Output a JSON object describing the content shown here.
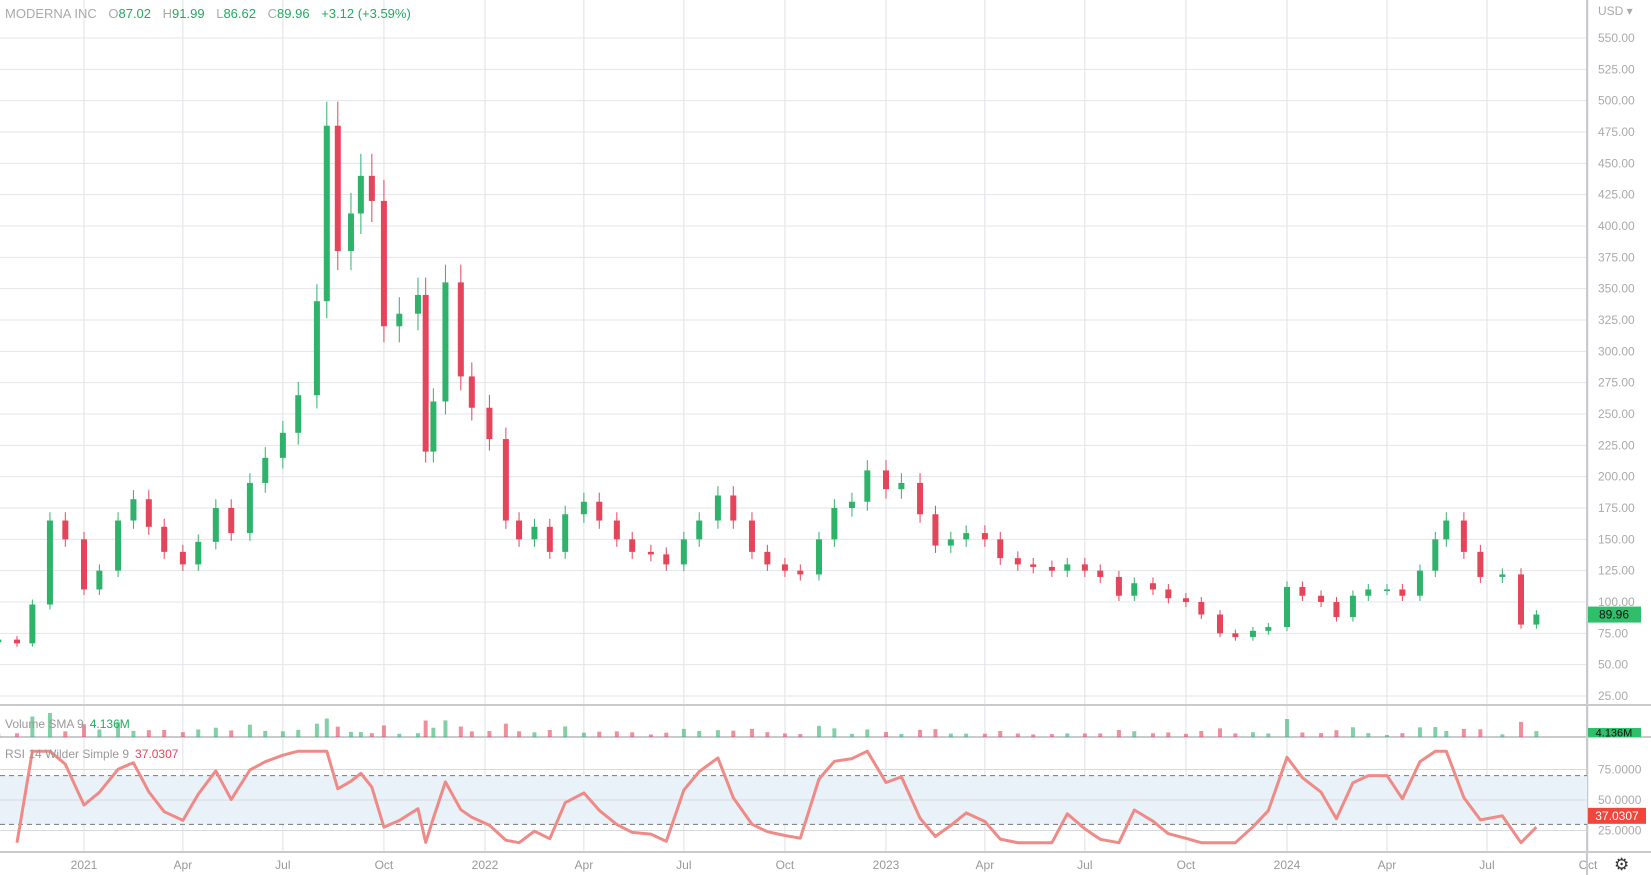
{
  "header": {
    "symbol": "MODERNA INC",
    "open_label": "O",
    "open": "87.02",
    "high_label": "H",
    "high": "91.99",
    "low_label": "L",
    "low": "86.62",
    "close_label": "C",
    "close": "89.96",
    "change": "+3.12 (+3.59%)"
  },
  "volume_indicator": {
    "label": "Volume SMA 9",
    "value": "4.136M"
  },
  "rsi_indicator": {
    "label": "RSI 14 Wilder Simple 9",
    "value": "37.0307"
  },
  "settings_icon": "gear-icon",
  "colors": {
    "up": "#2fb36b",
    "down": "#e5455a",
    "rsi": "#ef8a87",
    "rsi_band": "#e9f1f9",
    "last_price_bg": "#2fbf6b",
    "rsi_label_bg": "#f0463c"
  },
  "chart_data": {
    "type": "candlestick",
    "currency": "USD",
    "y_ticks": [
      25,
      50,
      75,
      100,
      125,
      150,
      175,
      200,
      225,
      250,
      275,
      300,
      325,
      350,
      375,
      400,
      425,
      450,
      475,
      500,
      525,
      550
    ],
    "ylim": [
      17,
      565
    ],
    "x_ticks": [
      {
        "date": "2021-01-01",
        "label": "2021"
      },
      {
        "date": "2021-04-01",
        "label": "Apr"
      },
      {
        "date": "2021-07-01",
        "label": "Jul"
      },
      {
        "date": "2021-10-01",
        "label": "Oct"
      },
      {
        "date": "2022-01-01",
        "label": "2022"
      },
      {
        "date": "2022-04-01",
        "label": "Apr"
      },
      {
        "date": "2022-07-01",
        "label": "Jul"
      },
      {
        "date": "2022-10-01",
        "label": "Oct"
      },
      {
        "date": "2023-01-01",
        "label": "2023"
      },
      {
        "date": "2023-04-01",
        "label": "Apr"
      },
      {
        "date": "2023-07-01",
        "label": "Jul"
      },
      {
        "date": "2023-10-01",
        "label": "Oct"
      },
      {
        "date": "2024-01-01",
        "label": "2024"
      },
      {
        "date": "2024-04-01",
        "label": "Apr"
      },
      {
        "date": "2024-07-01",
        "label": "Jul"
      },
      {
        "date": "2024-10-01",
        "label": "Oct"
      }
    ],
    "last_price": "89.96",
    "volume_last": "4.136M",
    "rsi_ticks": [
      25,
      50,
      75
    ],
    "rsi_band": [
      30,
      70
    ],
    "rsi_last": "37.0307",
    "closes": [
      [
        "2020-10-15",
        70
      ],
      [
        "2020-11-01",
        67
      ],
      [
        "2020-11-15",
        98
      ],
      [
        "2020-12-01",
        165
      ],
      [
        "2020-12-15",
        150
      ],
      [
        "2021-01-01",
        110
      ],
      [
        "2021-01-15",
        125
      ],
      [
        "2021-02-01",
        165
      ],
      [
        "2021-02-15",
        182
      ],
      [
        "2021-03-01",
        160
      ],
      [
        "2021-03-15",
        140
      ],
      [
        "2021-04-01",
        130
      ],
      [
        "2021-04-15",
        148
      ],
      [
        "2021-05-01",
        175
      ],
      [
        "2021-05-15",
        155
      ],
      [
        "2021-06-01",
        195
      ],
      [
        "2021-06-15",
        215
      ],
      [
        "2021-07-01",
        235
      ],
      [
        "2021-07-15",
        265
      ],
      [
        "2021-08-01",
        340
      ],
      [
        "2021-08-10",
        480
      ],
      [
        "2021-08-20",
        380
      ],
      [
        "2021-09-01",
        410
      ],
      [
        "2021-09-10",
        440
      ],
      [
        "2021-09-20",
        420
      ],
      [
        "2021-10-01",
        320
      ],
      [
        "2021-10-15",
        330
      ],
      [
        "2021-11-01",
        345
      ],
      [
        "2021-11-08",
        220
      ],
      [
        "2021-11-15",
        260
      ],
      [
        "2021-11-26",
        355
      ],
      [
        "2021-12-10",
        280
      ],
      [
        "2021-12-20",
        255
      ],
      [
        "2022-01-05",
        230
      ],
      [
        "2022-01-20",
        165
      ],
      [
        "2022-02-01",
        150
      ],
      [
        "2022-02-15",
        160
      ],
      [
        "2022-03-01",
        140
      ],
      [
        "2022-03-15",
        170
      ],
      [
        "2022-04-01",
        180
      ],
      [
        "2022-04-15",
        165
      ],
      [
        "2022-05-01",
        150
      ],
      [
        "2022-05-15",
        140
      ],
      [
        "2022-06-01",
        138
      ],
      [
        "2022-06-15",
        130
      ],
      [
        "2022-07-01",
        150
      ],
      [
        "2022-07-15",
        165
      ],
      [
        "2022-08-01",
        185
      ],
      [
        "2022-08-15",
        165
      ],
      [
        "2022-09-01",
        140
      ],
      [
        "2022-09-15",
        130
      ],
      [
        "2022-10-01",
        125
      ],
      [
        "2022-10-15",
        122
      ],
      [
        "2022-11-01",
        150
      ],
      [
        "2022-11-15",
        175
      ],
      [
        "2022-12-01",
        180
      ],
      [
        "2022-12-15",
        205
      ],
      [
        "2023-01-01",
        190
      ],
      [
        "2023-01-15",
        195
      ],
      [
        "2023-02-01",
        170
      ],
      [
        "2023-02-15",
        145
      ],
      [
        "2023-03-01",
        150
      ],
      [
        "2023-03-15",
        155
      ],
      [
        "2023-04-01",
        150
      ],
      [
        "2023-04-15",
        135
      ],
      [
        "2023-05-01",
        130
      ],
      [
        "2023-05-15",
        128
      ],
      [
        "2023-06-01",
        125
      ],
      [
        "2023-06-15",
        130
      ],
      [
        "2023-07-01",
        125
      ],
      [
        "2023-07-15",
        120
      ],
      [
        "2023-08-01",
        105
      ],
      [
        "2023-08-15",
        115
      ],
      [
        "2023-09-01",
        110
      ],
      [
        "2023-09-15",
        103
      ],
      [
        "2023-10-01",
        100
      ],
      [
        "2023-10-15",
        90
      ],
      [
        "2023-11-01",
        75
      ],
      [
        "2023-11-15",
        72
      ],
      [
        "2023-12-01",
        77
      ],
      [
        "2023-12-15",
        80
      ],
      [
        "2024-01-01",
        112
      ],
      [
        "2024-01-15",
        105
      ],
      [
        "2024-02-01",
        100
      ],
      [
        "2024-02-15",
        88
      ],
      [
        "2024-03-01",
        105
      ],
      [
        "2024-03-15",
        110
      ],
      [
        "2024-04-01",
        110
      ],
      [
        "2024-04-15",
        105
      ],
      [
        "2024-05-01",
        125
      ],
      [
        "2024-05-15",
        150
      ],
      [
        "2024-05-25",
        165
      ],
      [
        "2024-06-10",
        140
      ],
      [
        "2024-06-25",
        120
      ],
      [
        "2024-07-15",
        122
      ],
      [
        "2024-08-01",
        82
      ],
      [
        "2024-08-15",
        90
      ]
    ]
  }
}
